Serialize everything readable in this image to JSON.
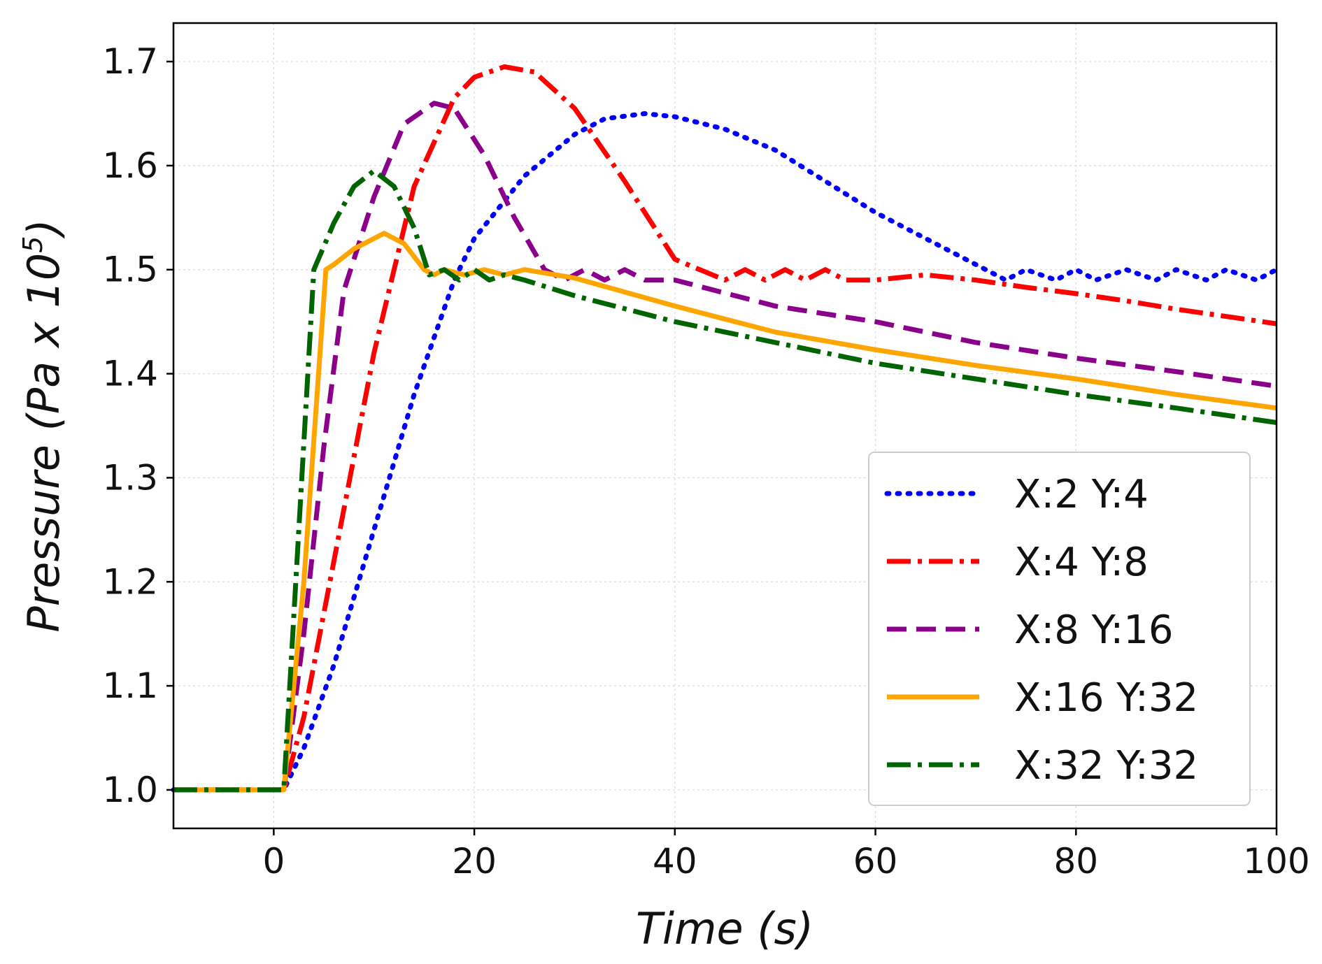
{
  "chart_data": {
    "type": "line",
    "xlabel": "Time (s)",
    "ylabel": "Pressure (Pa x 10",
    "ylabel_exponent": "5",
    "ylabel_close": ")",
    "xlim": [
      -10,
      100
    ],
    "ylim": [
      0.963,
      1.737
    ],
    "xticks": [
      0,
      20,
      40,
      60,
      80,
      100
    ],
    "xtick_labels": [
      "0",
      "20",
      "40",
      "60",
      "80",
      "100"
    ],
    "yticks": [
      1.0,
      1.1,
      1.2,
      1.3,
      1.4,
      1.5,
      1.6,
      1.7
    ],
    "ytick_labels": [
      "1.0",
      "1.1",
      "1.2",
      "1.3",
      "1.4",
      "1.5",
      "1.6",
      "1.7"
    ],
    "grid": true,
    "legend_position": "lower-right",
    "series": [
      {
        "name": "X:2 Y:4",
        "color": "#0000ff",
        "style": "dotted",
        "x": [
          -10,
          0,
          1,
          3,
          6,
          10,
          14,
          18,
          20,
          25,
          30,
          33,
          37,
          40,
          45,
          50,
          55,
          60,
          65,
          70,
          73,
          75,
          78,
          80,
          82,
          85,
          88,
          90,
          93,
          95,
          98,
          100
        ],
        "y": [
          1.0,
          1.0,
          1.0,
          1.04,
          1.12,
          1.25,
          1.38,
          1.49,
          1.53,
          1.59,
          1.63,
          1.645,
          1.65,
          1.647,
          1.635,
          1.615,
          1.585,
          1.555,
          1.53,
          1.505,
          1.49,
          1.5,
          1.49,
          1.5,
          1.49,
          1.5,
          1.49,
          1.5,
          1.49,
          1.5,
          1.49,
          1.5
        ]
      },
      {
        "name": "X:4 Y:8",
        "color": "#ff0000",
        "style": "dashdot",
        "x": [
          -10,
          0,
          1,
          3,
          6,
          10,
          14,
          18,
          20,
          23,
          26,
          30,
          35,
          40,
          45,
          47,
          49,
          51,
          53,
          55,
          57,
          60,
          65,
          70,
          75,
          80,
          85,
          90,
          95,
          100
        ],
        "y": [
          1.0,
          1.0,
          1.0,
          1.07,
          1.22,
          1.42,
          1.58,
          1.665,
          1.685,
          1.695,
          1.69,
          1.655,
          1.585,
          1.51,
          1.49,
          1.5,
          1.49,
          1.5,
          1.49,
          1.5,
          1.49,
          1.49,
          1.495,
          1.49,
          1.483,
          1.477,
          1.47,
          1.462,
          1.455,
          1.448
        ]
      },
      {
        "name": "X:8 Y:16",
        "color": "#8b008b",
        "style": "dashed",
        "x": [
          -10,
          0,
          1,
          3,
          5,
          7,
          10,
          13,
          16,
          18,
          21,
          24,
          27,
          29,
          31,
          33,
          35,
          37,
          40,
          50,
          60,
          70,
          80,
          90,
          100
        ],
        "y": [
          1.0,
          1.0,
          1.0,
          1.15,
          1.33,
          1.48,
          1.57,
          1.64,
          1.66,
          1.655,
          1.61,
          1.55,
          1.5,
          1.49,
          1.5,
          1.49,
          1.5,
          1.49,
          1.49,
          1.465,
          1.45,
          1.43,
          1.415,
          1.402,
          1.388
        ]
      },
      {
        "name": "X:16 Y:32",
        "color": "#ffa500",
        "style": "solid",
        "x": [
          -10,
          0,
          1,
          3,
          5.2,
          6,
          8,
          11,
          13,
          15,
          16,
          17,
          19,
          21,
          23,
          25,
          30,
          40,
          50,
          60,
          70,
          80,
          90,
          100
        ],
        "y": [
          1.0,
          1.0,
          1.0,
          1.2,
          1.5,
          1.505,
          1.52,
          1.535,
          1.525,
          1.5,
          1.495,
          1.5,
          1.495,
          1.5,
          1.495,
          1.5,
          1.492,
          1.465,
          1.44,
          1.423,
          1.408,
          1.395,
          1.38,
          1.367
        ]
      },
      {
        "name": "X:32 Y:32",
        "color": "#006400",
        "style": "dashdot",
        "x": [
          -10,
          0,
          1,
          2.5,
          4,
          6,
          8,
          10,
          12,
          14,
          15.5,
          17,
          18.5,
          20,
          21.5,
          23,
          25,
          30,
          40,
          50,
          60,
          70,
          80,
          90,
          100
        ],
        "y": [
          1.0,
          1.0,
          1.0,
          1.25,
          1.5,
          1.545,
          1.58,
          1.595,
          1.58,
          1.54,
          1.495,
          1.5,
          1.49,
          1.5,
          1.49,
          1.495,
          1.49,
          1.475,
          1.45,
          1.43,
          1.41,
          1.395,
          1.38,
          1.367,
          1.353
        ]
      }
    ]
  }
}
